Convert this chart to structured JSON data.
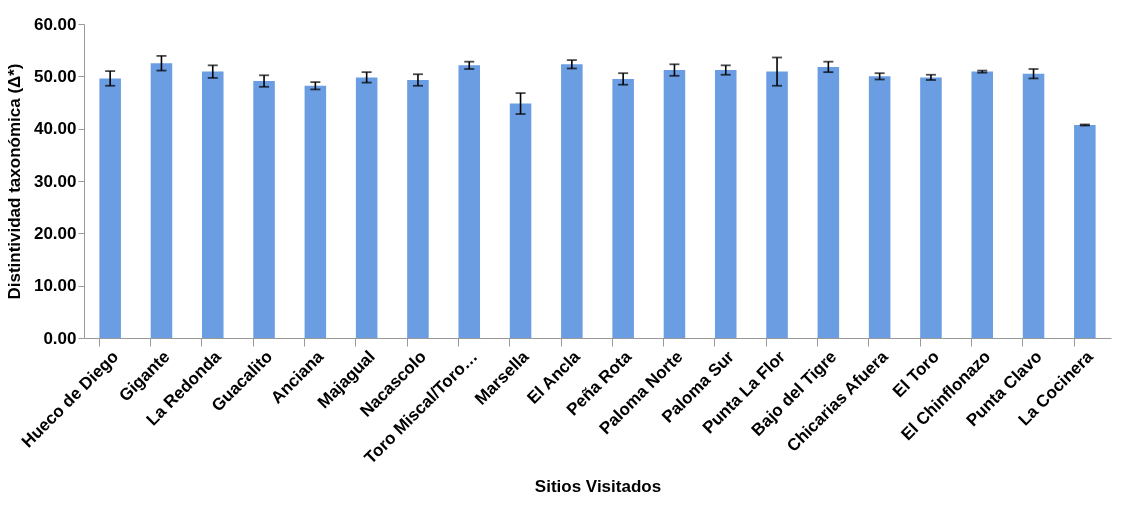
{
  "chart_data": {
    "type": "bar",
    "xlabel": "Sitios Visitados",
    "ylabel": "Distintividad taxonómica (Δ*)",
    "categories": [
      "Hueco de Diego",
      "Gigante",
      "La Redonda",
      "Guacalito",
      "Anciana",
      "Majagual",
      "Nacascolo",
      "Toro Miscal/Toro…",
      "Marsella",
      "El Ancla",
      "Peña Rota",
      "Paloma Norte",
      "Paloma Sur",
      "Punta La Flor",
      "Bajo del Tigre",
      "Chicarias Afuera",
      "El Toro",
      "El Chinflonazo",
      "Punta Clavo",
      "La Cocinera"
    ],
    "values": [
      49.6,
      52.5,
      50.9,
      49.1,
      48.2,
      49.8,
      49.3,
      52.1,
      44.8,
      52.3,
      49.5,
      51.2,
      51.2,
      50.9,
      51.8,
      50.0,
      49.8,
      50.9,
      50.5,
      40.7
    ],
    "errors": [
      1.4,
      1.4,
      1.2,
      1.1,
      0.7,
      1.0,
      1.1,
      0.7,
      2.0,
      0.8,
      1.1,
      1.1,
      0.9,
      2.7,
      1.0,
      0.6,
      0.5,
      0.2,
      0.9,
      0.1
    ],
    "color": "#6b9de3",
    "ylim": [
      0,
      60
    ],
    "yticks": [
      {
        "value": 0,
        "label": "0.00"
      },
      {
        "value": 10,
        "label": "10.00"
      },
      {
        "value": 20,
        "label": "20.00"
      },
      {
        "value": 30,
        "label": "30.00"
      },
      {
        "value": 40,
        "label": "40.00"
      },
      {
        "value": 50,
        "label": "50.00"
      },
      {
        "value": 60,
        "label": "60.00"
      }
    ],
    "grid": false
  }
}
